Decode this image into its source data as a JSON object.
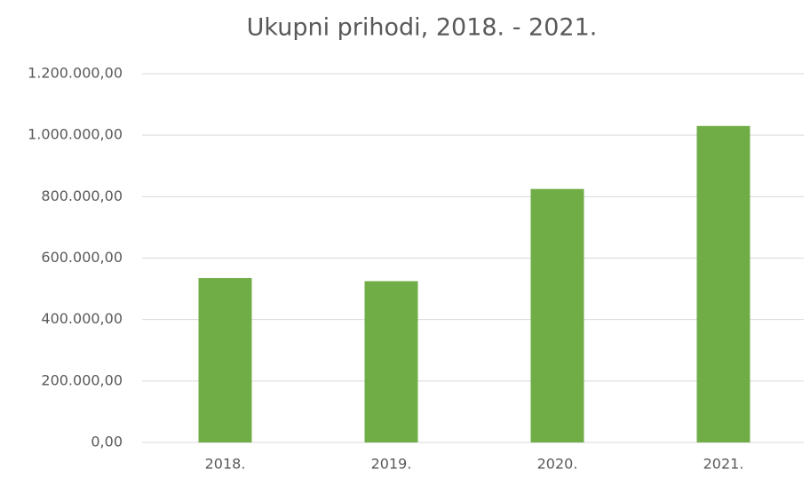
{
  "chart_data": {
    "type": "bar",
    "title": "Ukupni prihodi, 2018. - 2021.",
    "categories": [
      "2018.",
      "2019.",
      "2020.",
      "2021."
    ],
    "values": [
      535000,
      525000,
      825000,
      1030000
    ],
    "color": "#70ad47",
    "ylim": [
      0,
      1200000
    ],
    "yticks": [
      {
        "value": 0,
        "label": "0,00"
      },
      {
        "value": 200000,
        "label": "200.000,00"
      },
      {
        "value": 400000,
        "label": "400.000,00"
      },
      {
        "value": 600000,
        "label": "600.000,00"
      },
      {
        "value": 800000,
        "label": "800.000,00"
      },
      {
        "value": 1000000,
        "label": "1.000.000,00"
      },
      {
        "value": 1200000,
        "label": "1.200.000,00"
      }
    ],
    "grid": true
  }
}
